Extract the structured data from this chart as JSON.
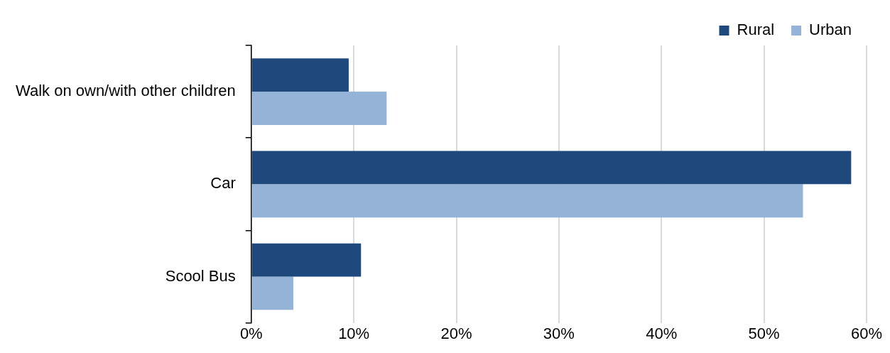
{
  "chart_data": {
    "type": "bar",
    "orientation": "horizontal",
    "categories": [
      "Walk on own/with other children",
      "Car",
      "Scool Bus"
    ],
    "series": [
      {
        "name": "Rural",
        "color": "#1f497d",
        "values": [
          9.5,
          58.5,
          10.7
        ]
      },
      {
        "name": "Urban",
        "color": "#95b3d7",
        "values": [
          13.2,
          53.8,
          4.1
        ]
      }
    ],
    "xlim": [
      0,
      60
    ],
    "xticks": [
      {
        "value": 0,
        "label": "0%"
      },
      {
        "value": 10,
        "label": "10%"
      },
      {
        "value": 20,
        "label": "20%"
      },
      {
        "value": 30,
        "label": "30%"
      },
      {
        "value": 40,
        "label": "40%"
      },
      {
        "value": 50,
        "label": "50%"
      },
      {
        "value": 60,
        "label": "60%"
      }
    ],
    "grid": "x",
    "legend": "top right"
  }
}
